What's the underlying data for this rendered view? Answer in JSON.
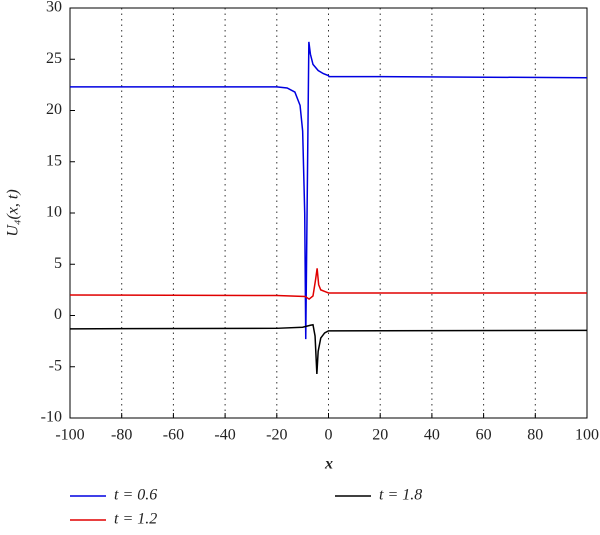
{
  "chart_data": {
    "type": "line",
    "xlabel": "x",
    "ylabel": "U₄(x, t)",
    "xlim": [
      -100,
      100
    ],
    "ylim": [
      -10,
      30
    ],
    "xticks": [
      -100,
      -80,
      -60,
      -40,
      -20,
      0,
      20,
      40,
      60,
      80,
      100
    ],
    "yticks": [
      -10,
      -5,
      0,
      5,
      10,
      15,
      20,
      25,
      30
    ],
    "grid": "x",
    "series": [
      {
        "name": "t = 0.6",
        "color": "#0000e0",
        "x": [
          -100,
          -20,
          -16,
          -13,
          -11,
          -10,
          -9.2,
          -8.8,
          -8.5,
          -7.6,
          -7,
          -6,
          -4,
          -2,
          0,
          0.2,
          20,
          100
        ],
        "values": [
          22.3,
          22.3,
          22.2,
          21.8,
          20.5,
          18,
          10,
          -2.3,
          5,
          26.7,
          25.5,
          24.5,
          23.9,
          23.6,
          23.4,
          23.3,
          23.3,
          23.2
        ]
      },
      {
        "name": "t = 1.2",
        "color": "#e00000",
        "x": [
          -100,
          -20,
          -9,
          -7.5,
          -6,
          -5,
          -4.4,
          -3.8,
          -3,
          -1,
          0,
          100
        ],
        "values": [
          2.0,
          1.95,
          1.85,
          1.6,
          1.9,
          3.5,
          4.6,
          3.0,
          2.5,
          2.3,
          2.2,
          2.2
        ]
      },
      {
        "name": "t = 1.8",
        "color": "#000000",
        "x": [
          -100,
          -20,
          -10,
          -7,
          -6,
          -5.2,
          -4.5,
          -4,
          -3,
          -1.5,
          0,
          100
        ],
        "values": [
          -1.3,
          -1.25,
          -1.15,
          -0.95,
          -0.9,
          -2,
          -5.7,
          -3.5,
          -2.2,
          -1.7,
          -1.5,
          -1.45
        ]
      }
    ]
  }
}
